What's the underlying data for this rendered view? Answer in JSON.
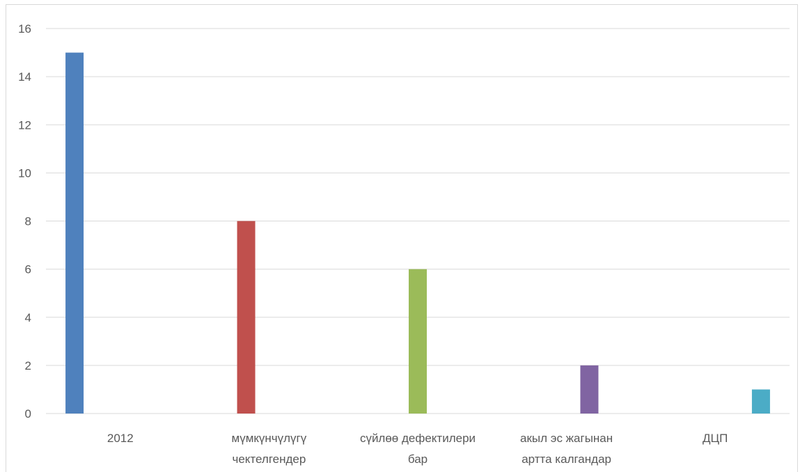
{
  "chart_data": {
    "type": "bar",
    "categories": [
      [
        "2012"
      ],
      [
        "мүмкүнчүлүгү",
        "чектелгендер"
      ],
      [
        "сүйлөө дефектилери",
        "бар"
      ],
      [
        "акыл эс жагынан",
        "артта калгандар"
      ],
      [
        "ДЦП"
      ]
    ],
    "values": [
      15,
      8,
      6,
      2,
      1
    ],
    "colors": [
      "#4f81bd",
      "#c0504d",
      "#9bbb59",
      "#8064a2",
      "#4bacc6"
    ],
    "yticks": [
      "0",
      "2",
      "4",
      "6",
      "8",
      "10",
      "12",
      "14",
      "16"
    ],
    "ylim": [
      0,
      16
    ],
    "grid": true,
    "title": "",
    "xlabel": "",
    "ylabel": ""
  }
}
